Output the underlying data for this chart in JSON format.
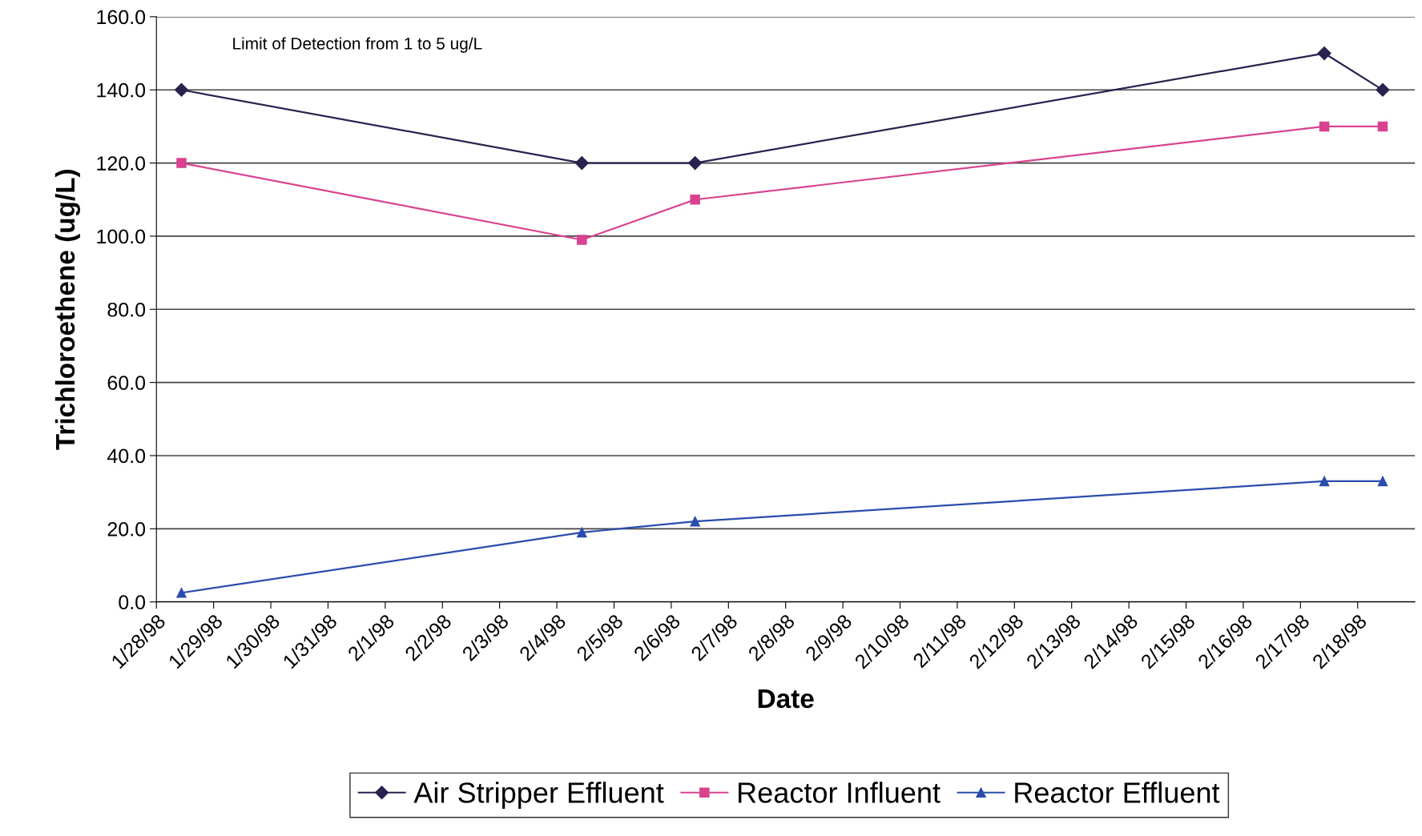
{
  "chart_data": {
    "type": "line",
    "xlabel": "Date",
    "ylabel": "Trichloroethene (ug/L)",
    "x": [
      "1998-01-28T10:30",
      "1998-02-04T10:30",
      "1998-02-06T10:00",
      "1998-02-17T10:00",
      "1998-02-18T10:30"
    ],
    "series": [
      {
        "name": "Air Stripper Effluent",
        "color": "#2b2250",
        "marker": "diamond",
        "values": [
          140,
          120,
          120,
          150,
          140
        ]
      },
      {
        "name": "Reactor Influent",
        "color": "#d8428f",
        "marker": "square",
        "values": [
          120,
          99,
          110,
          130,
          130
        ]
      },
      {
        "name": "Reactor Effluent",
        "color": "#2a4cad",
        "marker": "triangle",
        "values": [
          2.5,
          19,
          22,
          33,
          33
        ]
      }
    ],
    "annotations": [
      "Limit of Detection from 1 to 5 ug/L"
    ],
    "ylim": [
      0,
      160
    ],
    "yticks": [
      {
        "value": 0,
        "label": "0.0"
      },
      {
        "value": 20,
        "label": "20.0"
      },
      {
        "value": 40,
        "label": "40.0"
      },
      {
        "value": 60,
        "label": "60.0"
      },
      {
        "value": 80,
        "label": "80.0"
      },
      {
        "value": 100,
        "label": "100.0"
      },
      {
        "value": 120,
        "label": "120.0"
      },
      {
        "value": 140,
        "label": "140.0"
      },
      {
        "value": 160,
        "label": "160.0"
      }
    ],
    "xlim": [
      "1998-01-28",
      "1998-02-19"
    ],
    "xticks": [
      {
        "value": "1998-01-28",
        "label": "1/28/98"
      },
      {
        "value": "1998-01-29",
        "label": "1/29/98"
      },
      {
        "value": "1998-01-30",
        "label": "1/30/98"
      },
      {
        "value": "1998-01-31",
        "label": "1/31/98"
      },
      {
        "value": "1998-02-01",
        "label": "2/1/98"
      },
      {
        "value": "1998-02-02",
        "label": "2/2/98"
      },
      {
        "value": "1998-02-03",
        "label": "2/3/98"
      },
      {
        "value": "1998-02-04",
        "label": "2/4/98"
      },
      {
        "value": "1998-02-05",
        "label": "2/5/98"
      },
      {
        "value": "1998-02-06",
        "label": "2/6/98"
      },
      {
        "value": "1998-02-07",
        "label": "2/7/98"
      },
      {
        "value": "1998-02-08",
        "label": "2/8/98"
      },
      {
        "value": "1998-02-09",
        "label": "2/9/98"
      },
      {
        "value": "1998-02-10",
        "label": "2/10/98"
      },
      {
        "value": "1998-02-11",
        "label": "2/11/98"
      },
      {
        "value": "1998-02-12",
        "label": "2/12/98"
      },
      {
        "value": "1998-02-13",
        "label": "2/13/98"
      },
      {
        "value": "1998-02-14",
        "label": "2/14/98"
      },
      {
        "value": "1998-02-15",
        "label": "2/15/98"
      },
      {
        "value": "1998-02-16",
        "label": "2/16/98"
      },
      {
        "value": "1998-02-17",
        "label": "2/17/98"
      },
      {
        "value": "1998-02-18",
        "label": "2/18/98"
      }
    ],
    "grid": "y",
    "legend": "bottom",
    "line_style": "solid"
  }
}
